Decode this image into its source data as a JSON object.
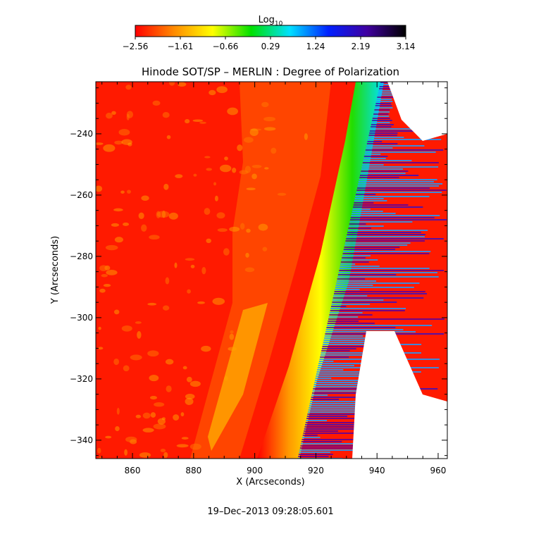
{
  "chart_data": {
    "type": "heatmap",
    "title": "Hinode SOT/SP – MERLIN : Degree of Polarization",
    "xlabel": "X (Arcseconds)",
    "ylabel": "Y (Arcseconds)",
    "xlim": [
      848,
      963
    ],
    "ylim": [
      -346,
      -223
    ],
    "x_ticks": [
      {
        "value": 860,
        "label": "860"
      },
      {
        "value": 880,
        "label": "880"
      },
      {
        "value": 900,
        "label": "900"
      },
      {
        "value": 920,
        "label": "920"
      },
      {
        "value": 940,
        "label": "940"
      },
      {
        "value": 960,
        "label": "960"
      }
    ],
    "y_ticks": [
      {
        "value": -240,
        "label": "−240"
      },
      {
        "value": -260,
        "label": "−260"
      },
      {
        "value": -280,
        "label": "−280"
      },
      {
        "value": -300,
        "label": "−300"
      },
      {
        "value": -320,
        "label": "−320"
      },
      {
        "value": -340,
        "label": "−340"
      }
    ],
    "colorbar": {
      "label_base": "Log",
      "label_sub": "10",
      "range": [
        -2.56,
        3.14
      ],
      "ticks": [
        {
          "value": -2.56,
          "label": "−2.56"
        },
        {
          "value": -1.61,
          "label": "−1.61"
        },
        {
          "value": -0.66,
          "label": "−0.66"
        },
        {
          "value": 0.29,
          "label": "0.29"
        },
        {
          "value": 1.24,
          "label": "1.24"
        },
        {
          "value": 2.19,
          "label": "2.19"
        },
        {
          "value": 3.14,
          "label": "3.14"
        }
      ],
      "colors": [
        "#ff0000",
        "#ff8a00",
        "#ffff00",
        "#00e000",
        "#00e0ff",
        "#0020ff",
        "#4000a0",
        "#000000"
      ]
    },
    "grid": false,
    "annotation": "19–Dec–2013 09:28:05.601"
  }
}
